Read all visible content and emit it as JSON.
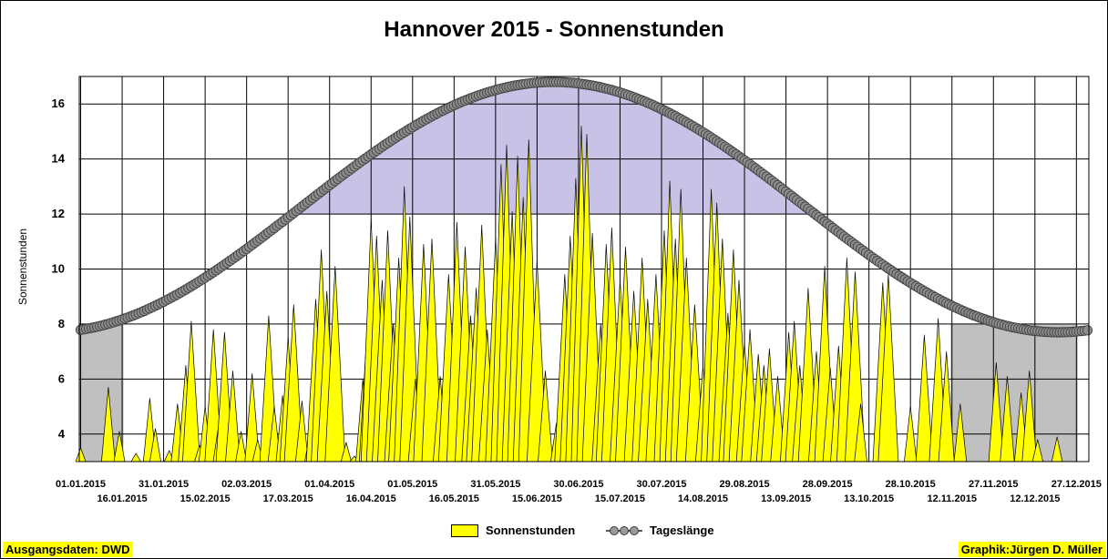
{
  "colors": {
    "sun": "#ffff00",
    "day_length_line": "#5a5a5a",
    "day_length_marker": "#8c8c8c",
    "band_fill": "#c8c3e6",
    "winter_shade": "#c0c0c0",
    "grid": "#000000"
  },
  "footer": {
    "source": "Ausgangsdaten: DWD",
    "credit": "Graphik:Jürgen D. Müller"
  },
  "chart_data": {
    "type": "area",
    "title": "Hannover 2015 - Sonnenstunden",
    "xlabel": "",
    "ylabel": "Sonnenstunden",
    "ylim": [
      3,
      17
    ],
    "yticks": [
      4,
      6,
      8,
      10,
      12,
      14,
      16
    ],
    "x_range": [
      "01.01.2015",
      "31.12.2015"
    ],
    "grid": true,
    "legend_position": "bottom",
    "x_tick_labels_row1": [
      "01.01.2015",
      "31.01.2015",
      "02.03.2015",
      "01.04.2015",
      "01.05.2015",
      "31.05.2015",
      "30.06.2015",
      "30.07.2015",
      "29.08.2015",
      "28.09.2015",
      "28.10.2015",
      "27.11.2015",
      "27.12.2015"
    ],
    "x_tick_labels_row2": [
      "16.01.2015",
      "15.02.2015",
      "17.03.2015",
      "16.04.2015",
      "16.05.2015",
      "15.06.2015",
      "15.07.2015",
      "14.08.2015",
      "13.09.2015",
      "13.10.2015",
      "12.11.2015",
      "12.12.2015"
    ],
    "shaded_ranges": [
      {
        "start": "01.01.2015",
        "end": "16.01.2015",
        "from": 3,
        "to": 8
      },
      {
        "start": "12.11.2015",
        "end": "27.12.2015",
        "from": 3,
        "to": 8
      }
    ],
    "band": {
      "above_value": 12,
      "bounded_by": "Tageslänge"
    },
    "series": [
      {
        "name": "Sonnenstunden",
        "type": "area",
        "color": "#ffff00",
        "points": [
          [
            "01.01.2015",
            3.5
          ],
          [
            "11.01.2015",
            5.7
          ],
          [
            "15.01.2015",
            4.1
          ],
          [
            "21.01.2015",
            3.3
          ],
          [
            "26.01.2015",
            5.3
          ],
          [
            "28.01.2015",
            4.2
          ],
          [
            "02.02.2015",
            3.4
          ],
          [
            "05.02.2015",
            5.1
          ],
          [
            "08.02.2015",
            6.5
          ],
          [
            "10.02.2015",
            8.1
          ],
          [
            "13.02.2015",
            3.6
          ],
          [
            "15.02.2015",
            5.0
          ],
          [
            "18.02.2015",
            7.8
          ],
          [
            "20.02.2015",
            4.4
          ],
          [
            "22.02.2015",
            7.7
          ],
          [
            "25.02.2015",
            6.3
          ],
          [
            "28.02.2015",
            4.1
          ],
          [
            "04.03.2015",
            6.2
          ],
          [
            "06.03.2015",
            3.8
          ],
          [
            "10.03.2015",
            8.3
          ],
          [
            "12.03.2015",
            5.0
          ],
          [
            "15.03.2015",
            5.4
          ],
          [
            "17.03.2015",
            7.5
          ],
          [
            "19.03.2015",
            8.7
          ],
          [
            "22.03.2015",
            5.2
          ],
          [
            "25.03.2015",
            4.1
          ],
          [
            "27.03.2015",
            8.9
          ],
          [
            "29.03.2015",
            10.7
          ],
          [
            "31.03.2015",
            9.2
          ],
          [
            "03.04.2015",
            10.1
          ],
          [
            "07.04.2015",
            3.7
          ],
          [
            "10.04.2015",
            3.2
          ],
          [
            "13.04.2015",
            6.0
          ],
          [
            "15.04.2015",
            8.5
          ],
          [
            "16.04.2015",
            11.8
          ],
          [
            "18.04.2015",
            11.2
          ],
          [
            "20.04.2015",
            9.6
          ],
          [
            "22.04.2015",
            11.4
          ],
          [
            "24.04.2015",
            8.0
          ],
          [
            "26.04.2015",
            10.4
          ],
          [
            "28.04.2015",
            13.0
          ],
          [
            "30.04.2015",
            11.9
          ],
          [
            "02.05.2015",
            6.0
          ],
          [
            "05.05.2015",
            10.9
          ],
          [
            "08.05.2015",
            11.1
          ],
          [
            "11.05.2015",
            6.1
          ],
          [
            "14.05.2015",
            9.8
          ],
          [
            "17.05.2015",
            11.7
          ],
          [
            "20.05.2015",
            10.8
          ],
          [
            "22.05.2015",
            8.3
          ],
          [
            "24.05.2015",
            9.3
          ],
          [
            "26.05.2015",
            11.6
          ],
          [
            "28.05.2015",
            7.8
          ],
          [
            "31.05.2015",
            11.1
          ],
          [
            "02.06.2015",
            13.8
          ],
          [
            "04.06.2015",
            14.5
          ],
          [
            "06.06.2015",
            12.1
          ],
          [
            "08.06.2015",
            14.1
          ],
          [
            "10.06.2015",
            12.6
          ],
          [
            "12.06.2015",
            14.7
          ],
          [
            "15.06.2015",
            10.3
          ],
          [
            "18.06.2015",
            6.3
          ],
          [
            "22.06.2015",
            4.4
          ],
          [
            "25.06.2015",
            9.8
          ],
          [
            "27.06.2015",
            11.2
          ],
          [
            "29.06.2015",
            13.3
          ],
          [
            "01.07.2015",
            15.2
          ],
          [
            "03.07.2015",
            14.9
          ],
          [
            "05.07.2015",
            11.3
          ],
          [
            "08.07.2015",
            8.0
          ],
          [
            "10.07.2015",
            10.9
          ],
          [
            "12.07.2015",
            11.5
          ],
          [
            "15.07.2015",
            9.6
          ],
          [
            "17.07.2015",
            10.8
          ],
          [
            "20.07.2015",
            9.2
          ],
          [
            "23.07.2015",
            10.4
          ],
          [
            "25.07.2015",
            8.9
          ],
          [
            "28.07.2015",
            9.8
          ],
          [
            "31.07.2015",
            11.4
          ],
          [
            "02.08.2015",
            13.2
          ],
          [
            "04.08.2015",
            11.1
          ],
          [
            "06.08.2015",
            12.9
          ],
          [
            "08.08.2015",
            10.4
          ],
          [
            "11.08.2015",
            8.7
          ],
          [
            "14.08.2015",
            6.5
          ],
          [
            "17.08.2015",
            12.9
          ],
          [
            "19.08.2015",
            12.4
          ],
          [
            "21.08.2015",
            11.1
          ],
          [
            "23.08.2015",
            8.4
          ],
          [
            "25.08.2015",
            10.7
          ],
          [
            "27.08.2015",
            9.6
          ],
          [
            "29.08.2015",
            7.3
          ],
          [
            "31.08.2015",
            7.8
          ],
          [
            "03.09.2015",
            6.9
          ],
          [
            "05.09.2015",
            6.5
          ],
          [
            "07.09.2015",
            7.1
          ],
          [
            "10.09.2015",
            6.1
          ],
          [
            "14.09.2015",
            7.7
          ],
          [
            "16.09.2015",
            8.1
          ],
          [
            "18.09.2015",
            6.5
          ],
          [
            "21.09.2015",
            9.3
          ],
          [
            "24.09.2015",
            7.0
          ],
          [
            "27.09.2015",
            10.1
          ],
          [
            "29.09.2015",
            6.4
          ],
          [
            "02.10.2015",
            7.2
          ],
          [
            "05.10.2015",
            10.4
          ],
          [
            "08.10.2015",
            9.9
          ],
          [
            "10.10.2015",
            5.1
          ],
          [
            "18.10.2015",
            9.5
          ],
          [
            "20.10.2015",
            9.8
          ],
          [
            "28.10.2015",
            5.0
          ],
          [
            "02.11.2015",
            7.6
          ],
          [
            "07.11.2015",
            8.2
          ],
          [
            "10.11.2015",
            7.0
          ],
          [
            "15.11.2015",
            5.1
          ],
          [
            "28.11.2015",
            6.6
          ],
          [
            "02.12.2015",
            6.1
          ],
          [
            "07.12.2015",
            5.5
          ],
          [
            "10.12.2015",
            6.3
          ],
          [
            "13.12.2015",
            3.8
          ],
          [
            "20.12.2015",
            3.9
          ]
        ]
      },
      {
        "name": "Tageslänge",
        "type": "line",
        "marker": "circle",
        "min_value": 7.7,
        "min_date": "21.12.2015",
        "max_value": 16.8,
        "max_date": "21.06.2015"
      }
    ]
  }
}
